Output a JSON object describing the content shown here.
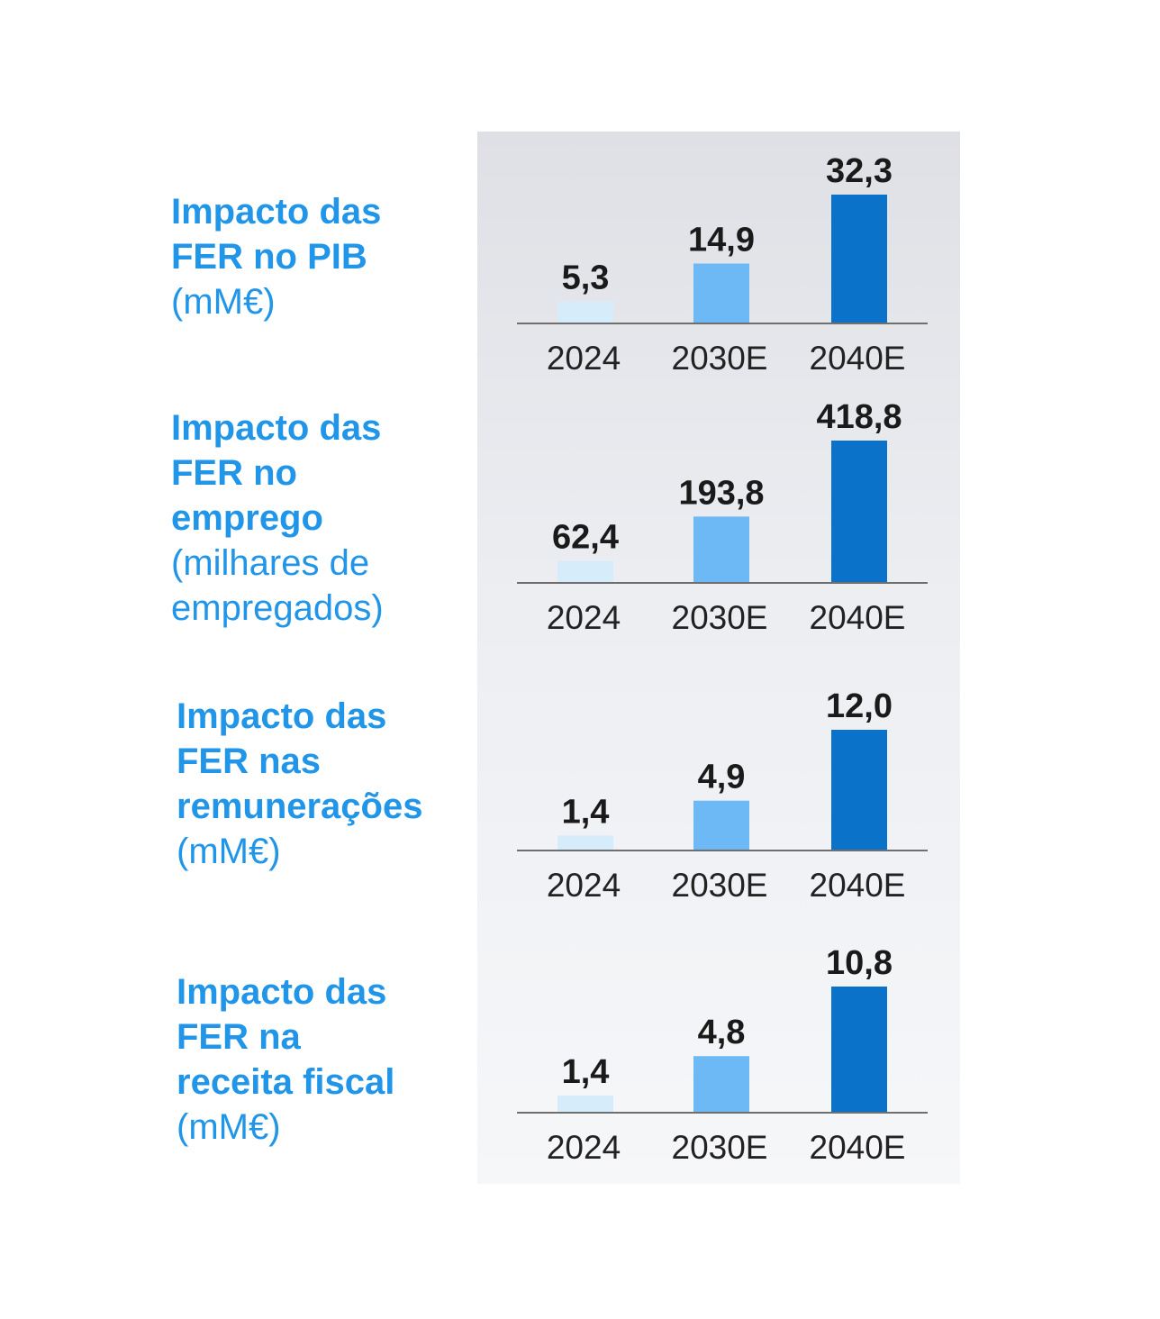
{
  "chart_data": [
    {
      "type": "bar",
      "title": "Impacto das\nFER no PIB",
      "unit": "(mM€)",
      "categories": [
        "2024",
        "2030E",
        "2040E"
      ],
      "values": [
        5.3,
        14.9,
        32.3
      ],
      "value_labels": [
        "5,3",
        "14,9",
        "32,3"
      ]
    },
    {
      "type": "bar",
      "title": "Impacto das\nFER no\nemprego",
      "unit": "(milhares de\nempregados)",
      "categories": [
        "2024",
        "2030E",
        "2040E"
      ],
      "values": [
        62.4,
        193.8,
        418.8
      ],
      "value_labels": [
        "62,4",
        "193,8",
        "418,8"
      ]
    },
    {
      "type": "bar",
      "title": "Impacto das\nFER nas\nremunerações",
      "unit": "(mM€)",
      "categories": [
        "2024",
        "2030E",
        "2040E"
      ],
      "values": [
        1.4,
        4.9,
        12.0
      ],
      "value_labels": [
        "1,4",
        "4,9",
        "12,0"
      ]
    },
    {
      "type": "bar",
      "title": "Impacto das\nFER na\nreceita fiscal",
      "unit": "(mM€)",
      "categories": [
        "2024",
        "2030E",
        "2040E"
      ],
      "values": [
        1.4,
        4.8,
        10.8
      ],
      "value_labels": [
        "1,4",
        "4,8",
        "10,8"
      ]
    }
  ],
  "colors": {
    "label_blue": "#2196e8",
    "bar_colors": [
      "#d6ecfb",
      "#6cb9f5",
      "#0a72c8"
    ],
    "axis": "#6f6f6f",
    "value_text": "#1a1a1a"
  }
}
